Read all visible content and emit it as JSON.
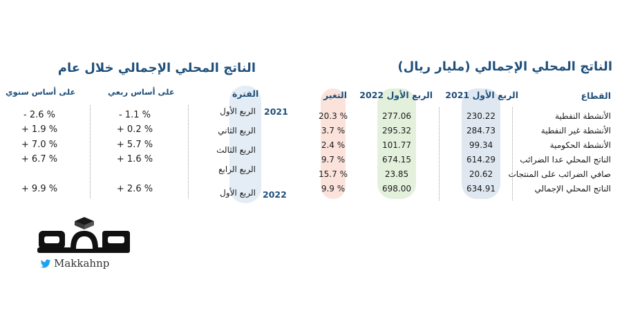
{
  "left_table": {
    "title": "الناتج المحلي الإجمالي  (مليار ريال)",
    "headers": {
      "sector": "القطاع",
      "q1_2021": "الربع الأول 2021",
      "q1_2022": "الربع الأول 2022",
      "change": "التغير"
    },
    "rows": [
      {
        "sector": "الأنشطة النفطية",
        "q1_2021": "230.22",
        "q1_2022": "277.06",
        "change": "20.3 %"
      },
      {
        "sector": "الأنشطة غير النفطية",
        "q1_2021": "284.73",
        "q1_2022": "295.32",
        "change": "3.7 %"
      },
      {
        "sector": "الأنشطة الحكومية",
        "q1_2021": "99.34",
        "q1_2022": "101.77",
        "change": "2.4 %"
      },
      {
        "sector": "الناتج المحلي عدا الضرائب",
        "q1_2021": "614.29",
        "q1_2022": "674.15",
        "change": "9.7 %"
      },
      {
        "sector": "صافي الضرائب على المنتجات",
        "q1_2021": "20.62",
        "q1_2022": "23.85",
        "change": "15.7 %"
      },
      {
        "sector": "الناتج المحلي الإجمالي",
        "q1_2021": "634.91",
        "q1_2022": "698.00",
        "change": "9.9 %"
      }
    ],
    "colors": {
      "q1_2021_pill": "#dfe8f1",
      "q1_2022_pill": "#e3f1dc",
      "change_pill": "#fbe3dc"
    }
  },
  "right_table": {
    "title": "الناتج المحلي الإجمالي خلال عام",
    "headers": {
      "period": "الفترة",
      "quarterly": "على أساس ربعي",
      "annual": "على أساس سنوي"
    },
    "years": {
      "y2021": "2021",
      "y2022": "2022"
    },
    "rows": [
      {
        "period": "الربع الأول",
        "quarterly": "- 1.1 %",
        "annual": "- 2.6 %"
      },
      {
        "period": "الربع الثاني",
        "quarterly": "+ 0.2 %",
        "annual": "+ 1.9 %"
      },
      {
        "period": "الربع الثالث",
        "quarterly": "+ 5.7 %",
        "annual": "+ 7.0 %"
      },
      {
        "period": "الربع الرابع",
        "quarterly": "+ 1.6 %",
        "annual": "+ 6.7 %"
      },
      {
        "period": "الربع الأول",
        "quarterly": "+ 2.6 %",
        "annual": "+ 9.9 %"
      }
    ],
    "colors": {
      "period_pill": "#e4edf5"
    }
  },
  "logo": {
    "arabic": "مكة",
    "handle": "Makkahnp",
    "icon": "twitter-bird-icon"
  },
  "colors": {
    "title_blue": "#1f4f7a",
    "twitter_blue": "#1da1f2"
  }
}
